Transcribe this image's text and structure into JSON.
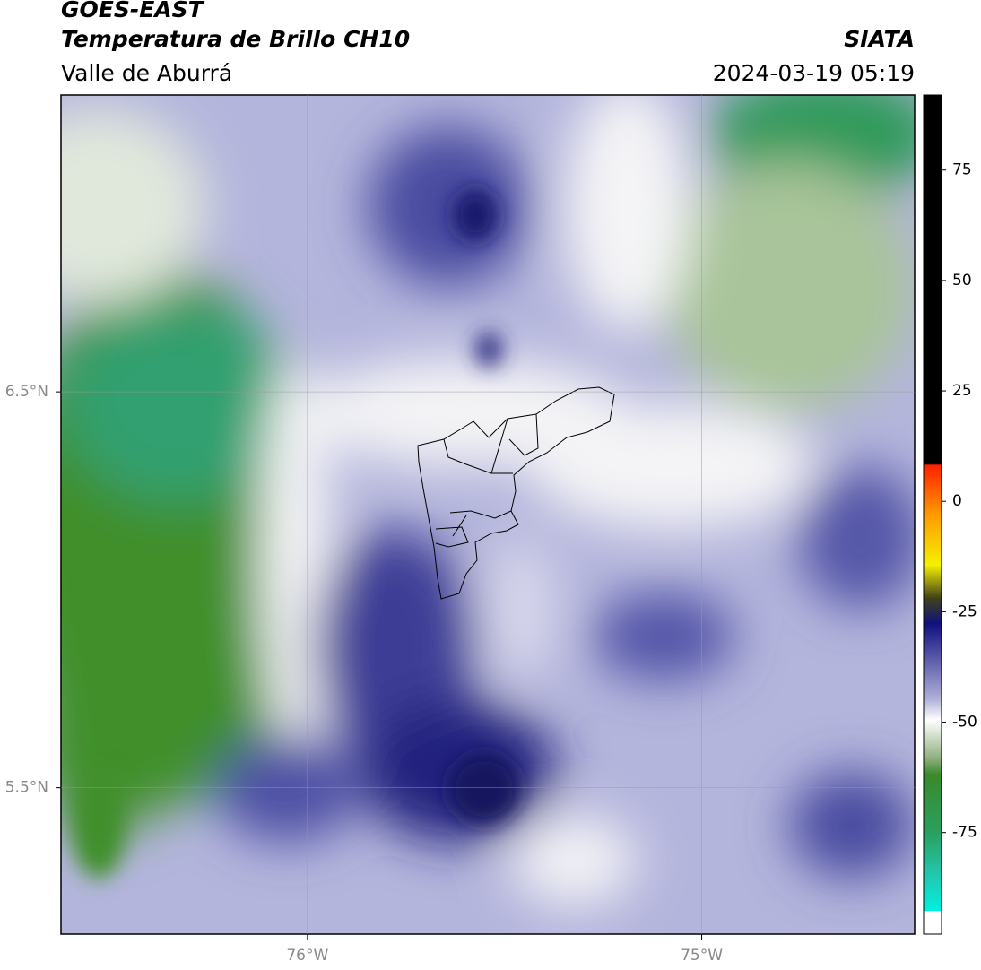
{
  "header": {
    "title": "GOES-EAST",
    "subtitle": "Temperatura de Brillo CH10",
    "region": "Valle de Aburrá",
    "source": "SIATA",
    "datetime": "2024-03-19 05:19"
  },
  "map": {
    "xlim": [
      -76.625,
      -74.46
    ],
    "ylim": [
      5.13,
      7.25
    ],
    "xticks": [
      {
        "value": -76,
        "label": "76°W"
      },
      {
        "value": -75,
        "label": "75°W"
      }
    ],
    "yticks": [
      {
        "value": 6.5,
        "label": "6.5°N"
      },
      {
        "value": 5.5,
        "label": "5.5°N"
      }
    ],
    "grid": true
  },
  "colorbar": {
    "lim": [
      -98,
      92
    ],
    "ticks": [
      75,
      50,
      25,
      0,
      -25,
      -50,
      -75
    ]
  }
}
